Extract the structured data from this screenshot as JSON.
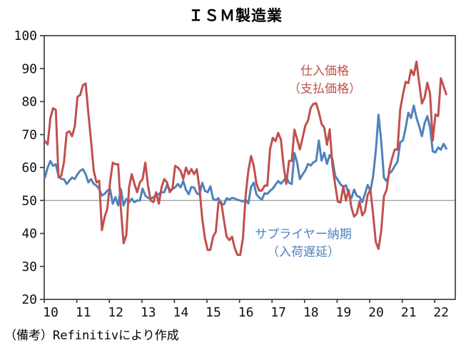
{
  "title": "ＩＳＭ製造業",
  "note": "（備考）Refinitivにより作成",
  "annotations": {
    "prices": {
      "line1": "仕入価格",
      "line2": "（支払価格）"
    },
    "deliveries": {
      "line1": "サプライヤー納期",
      "line2": "（入荷遅延）"
    }
  },
  "colors": {
    "prices": "#C0504D",
    "deliveries": "#4F81BD",
    "gridline": "#999999",
    "axis": "#3f3f3f",
    "text": "#111111"
  },
  "chart_data": {
    "type": "line",
    "title": "ＩＳＭ製造業",
    "x_frequency": "monthly",
    "x_start": "2010-01",
    "x_end": "2022-05",
    "x_tick_labels": [
      "10",
      "11",
      "12",
      "13",
      "14",
      "15",
      "16",
      "17",
      "18",
      "19",
      "20",
      "21",
      "22"
    ],
    "ylim": [
      20,
      100
    ],
    "y_ticks": [
      20,
      30,
      40,
      50,
      60,
      70,
      80,
      90,
      100
    ],
    "reference_line": 50,
    "grid": "horizontal line at 50 only",
    "legend_position": "inline text annotations",
    "series": [
      {
        "id": "prices-paid",
        "name": "仕入価格（支払価格）",
        "color": "#C0504D",
        "values": [
          68,
          67,
          75,
          78,
          77.5,
          57,
          57.5,
          61.5,
          70.5,
          71,
          69.5,
          72.5,
          81.5,
          82,
          85,
          85.5,
          76.5,
          68,
          59,
          55.5,
          56,
          41,
          45,
          47.5,
          55.5,
          61.5,
          61,
          61,
          47.5,
          37,
          39.5,
          54,
          58,
          55,
          52.5,
          55.5,
          56.5,
          61.5,
          54.5,
          50,
          49.5,
          52.5,
          49,
          54,
          56.5,
          55.5,
          52.5,
          53.5,
          60.5,
          60,
          59,
          56.5,
          60,
          58,
          59.5,
          58,
          59.5,
          53.5,
          44.5,
          38.5,
          35,
          35,
          39,
          40.5,
          49.5,
          49.5,
          44,
          39,
          38,
          39,
          35.5,
          33.5,
          33.5,
          38.5,
          51.5,
          59,
          63.5,
          60.5,
          55,
          53,
          53,
          54.5,
          54.5,
          65.5,
          69,
          68,
          70.5,
          68.5,
          60.5,
          55,
          62,
          62,
          71.5,
          68.5,
          65.5,
          69,
          72.7,
          74.2,
          78.1,
          79.3,
          79.5,
          76.8,
          73.2,
          72.1,
          66.9,
          71.6,
          60.7,
          54.9,
          49.6,
          49.4,
          54.3,
          50,
          53.2,
          47.9,
          45.1,
          46,
          49.7,
          45.5,
          46.7,
          51.7,
          53.3,
          45.9,
          37.4,
          35.3,
          40.8,
          51.3,
          53.2,
          59.5,
          62.8,
          65.5,
          65.4,
          77.6,
          82.1,
          86,
          85.6,
          89.6,
          88,
          92.1,
          85.7,
          79.4,
          81.2,
          85.7,
          82.4,
          68.2,
          76.1,
          75.6,
          87.1,
          84.6,
          82.2
        ]
      },
      {
        "id": "supplier-deliveries",
        "name": "サプライヤー納期（入荷遅延）",
        "color": "#4F81BD",
        "values": [
          57,
          60,
          62,
          60.5,
          61,
          57.5,
          56.5,
          56.5,
          55,
          56,
          57,
          56.5,
          58,
          59,
          59.5,
          58,
          55.5,
          56.5,
          55,
          54.5,
          53.5,
          51.5,
          52,
          53,
          53.5,
          49,
          51,
          48.5,
          53.5,
          48.5,
          50.5,
          49.5,
          50.5,
          49.5,
          50,
          50,
          53.6,
          51.5,
          50.8,
          50.5,
          51,
          51.5,
          52,
          52.5,
          52.5,
          54.7,
          53.2,
          53.5,
          54,
          55,
          54,
          55.9,
          53.2,
          51.9,
          54.1,
          53.9,
          52.2,
          51.8,
          55.4,
          52.9,
          52.5,
          54.3,
          50.5,
          50.1,
          50.7,
          48.8,
          48.8,
          50.7,
          50.3,
          50.8,
          50.6,
          50.2,
          50,
          49.7,
          50.2,
          49.1,
          54.1,
          55.4,
          51.8,
          50.9,
          50.3,
          52.2,
          52,
          52.9,
          53.6,
          54.8,
          55.9,
          55.1,
          56,
          57,
          55.4,
          55,
          64.4,
          61.4,
          56.5,
          57.9,
          59.1,
          61.1,
          60.6,
          61.6,
          62,
          68.2,
          62.1,
          64.5,
          61.1,
          63.8,
          62.5,
          57.5,
          56.2,
          54.9,
          54.2,
          54.6,
          52,
          50.7,
          53.3,
          51.4,
          51.1,
          49.5,
          52,
          54.7,
          52.9,
          57.3,
          65,
          76,
          68,
          56.9,
          55.8,
          58.2,
          59,
          60.5,
          61.7,
          67.7,
          68.2,
          72,
          76.6,
          75,
          78.8,
          75.1,
          72.5,
          69.5,
          73.4,
          75.6,
          72.2,
          64.9,
          64.6,
          66.1,
          65.4,
          67.2,
          65.7
        ]
      }
    ]
  }
}
